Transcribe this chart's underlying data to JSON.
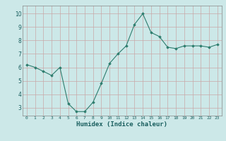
{
  "x": [
    0,
    1,
    2,
    3,
    4,
    5,
    6,
    7,
    8,
    9,
    10,
    11,
    12,
    13,
    14,
    15,
    16,
    17,
    18,
    19,
    20,
    21,
    22,
    23
  ],
  "y": [
    6.2,
    6.0,
    5.7,
    5.4,
    6.0,
    3.3,
    2.7,
    2.7,
    3.4,
    4.8,
    6.3,
    7.0,
    7.6,
    9.2,
    10.0,
    8.6,
    8.3,
    7.5,
    7.4,
    7.6,
    7.6,
    7.6,
    7.5,
    7.7
  ],
  "xlabel": "Humidex (Indice chaleur)",
  "xlim": [
    -0.5,
    23.5
  ],
  "ylim": [
    2.4,
    10.6
  ],
  "yticks": [
    3,
    4,
    5,
    6,
    7,
    8,
    9,
    10
  ],
  "xticks": [
    0,
    1,
    2,
    3,
    4,
    5,
    6,
    7,
    8,
    9,
    10,
    11,
    12,
    13,
    14,
    15,
    16,
    17,
    18,
    19,
    20,
    21,
    22,
    23
  ],
  "line_color": "#2d7d6e",
  "marker": "D",
  "marker_size": 1.8,
  "bg_color": "#cce8e8",
  "grid_color": "#c8a8a8",
  "axis_bg": "#cce8e8",
  "xlabel_color": "#1a5f5f",
  "tick_color": "#1a5f5f"
}
